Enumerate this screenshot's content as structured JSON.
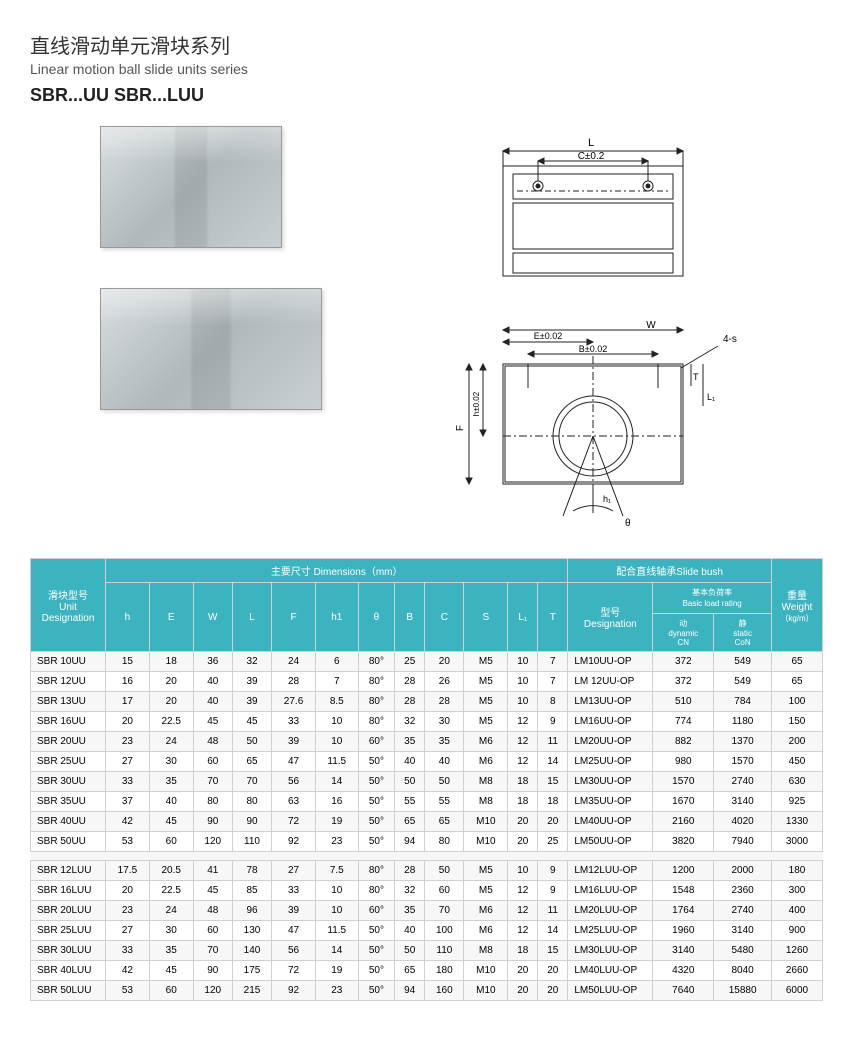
{
  "titles": {
    "cn": "直线滑动单元滑块系列",
    "en": "Linear motion ball slide units series",
    "models": "SBR...UU    SBR...LUU"
  },
  "diagram_labels": {
    "top_L": "L",
    "top_C": "C±0.2",
    "front_E": "E±0.02",
    "front_W": "W",
    "front_4s": "4-s",
    "front_B": "B±0.02",
    "front_F": "F",
    "front_h": "h±0.02",
    "front_T": "T",
    "front_L1": "L₁",
    "front_h1": "h₁",
    "front_theta": "θ"
  },
  "header": {
    "group1_cn": "滑块型号",
    "group1_en": "Unit",
    "group1_en2": "Designation",
    "group2_cn": "主要尺寸  Dimensions（mm）",
    "group3_cn": "配合直线轴承Slide bush",
    "group4_cn": "重量",
    "group4_en": "Weight",
    "group4_unit": "（kg/m）",
    "h": "h",
    "E": "E",
    "W": "W",
    "L": "L",
    "F": "F",
    "h1": "h1",
    "theta": "θ",
    "B": "B",
    "C": "C",
    "S": "S",
    "L1": "L₁",
    "T": "T",
    "des_cn": "型号",
    "des_en": "Designation",
    "loads_cn": "基本负荷率",
    "loads_en": "Basic load rating",
    "dyn_cn": "动",
    "dyn_en": "dynamic",
    "dyn_unit": "CN",
    "sta_cn": "静",
    "sta_en": "static",
    "sta_unit": "CoN"
  },
  "tableA": [
    {
      "d": "SBR 10UU",
      "h": "15",
      "E": "18",
      "W": "36",
      "L": "32",
      "F": "24",
      "h1": "6",
      "th": "80°",
      "B": "25",
      "C": "20",
      "S": "M5",
      "L1": "10",
      "T": "7",
      "des": "LM10UU-OP",
      "dyn": "372",
      "sta": "549",
      "wt": "65"
    },
    {
      "d": "SBR 12UU",
      "h": "16",
      "E": "20",
      "W": "40",
      "L": "39",
      "F": "28",
      "h1": "7",
      "th": "80°",
      "B": "28",
      "C": "26",
      "S": "M5",
      "L1": "10",
      "T": "7",
      "des": "LM 12UU-OP",
      "dyn": "372",
      "sta": "549",
      "wt": "65"
    },
    {
      "d": "SBR 13UU",
      "h": "17",
      "E": "20",
      "W": "40",
      "L": "39",
      "F": "27.6",
      "h1": "8.5",
      "th": "80°",
      "B": "28",
      "C": "28",
      "S": "M5",
      "L1": "10",
      "T": "8",
      "des": "LM13UU-OP",
      "dyn": "510",
      "sta": "784",
      "wt": "100"
    },
    {
      "d": "SBR 16UU",
      "h": "20",
      "E": "22.5",
      "W": "45",
      "L": "45",
      "F": "33",
      "h1": "10",
      "th": "80°",
      "B": "32",
      "C": "30",
      "S": "M5",
      "L1": "12",
      "T": "9",
      "des": "LM16UU-OP",
      "dyn": "774",
      "sta": "1180",
      "wt": "150"
    },
    {
      "d": "SBR 20UU",
      "h": "23",
      "E": "24",
      "W": "48",
      "L": "50",
      "F": "39",
      "h1": "10",
      "th": "60°",
      "B": "35",
      "C": "35",
      "S": "M6",
      "L1": "12",
      "T": "11",
      "des": "LM20UU-OP",
      "dyn": "882",
      "sta": "1370",
      "wt": "200"
    },
    {
      "d": "SBR 25UU",
      "h": "27",
      "E": "30",
      "W": "60",
      "L": "65",
      "F": "47",
      "h1": "11.5",
      "th": "50°",
      "B": "40",
      "C": "40",
      "S": "M6",
      "L1": "12",
      "T": "14",
      "des": "LM25UU-OP",
      "dyn": "980",
      "sta": "1570",
      "wt": "450"
    },
    {
      "d": "SBR 30UU",
      "h": "33",
      "E": "35",
      "W": "70",
      "L": "70",
      "F": "56",
      "h1": "14",
      "th": "50°",
      "B": "50",
      "C": "50",
      "S": "M8",
      "L1": "18",
      "T": "15",
      "des": "LM30UU-OP",
      "dyn": "1570",
      "sta": "2740",
      "wt": "630"
    },
    {
      "d": "SBR 35UU",
      "h": "37",
      "E": "40",
      "W": "80",
      "L": "80",
      "F": "63",
      "h1": "16",
      "th": "50°",
      "B": "55",
      "C": "55",
      "S": "M8",
      "L1": "18",
      "T": "18",
      "des": "LM35UU-OP",
      "dyn": "1670",
      "sta": "3140",
      "wt": "925"
    },
    {
      "d": "SBR 40UU",
      "h": "42",
      "E": "45",
      "W": "90",
      "L": "90",
      "F": "72",
      "h1": "19",
      "th": "50°",
      "B": "65",
      "C": "65",
      "S": "M10",
      "L1": "20",
      "T": "20",
      "des": "LM40UU-OP",
      "dyn": "2160",
      "sta": "4020",
      "wt": "1330"
    },
    {
      "d": "SBR 50UU",
      "h": "53",
      "E": "60",
      "W": "120",
      "L": "110",
      "F": "92",
      "h1": "23",
      "th": "50°",
      "B": "94",
      "C": "80",
      "S": "M10",
      "L1": "20",
      "T": "25",
      "des": "LM50UU-OP",
      "dyn": "3820",
      "sta": "7940",
      "wt": "3000"
    }
  ],
  "tableB": [
    {
      "d": "SBR 12LUU",
      "h": "17.5",
      "E": "20.5",
      "W": "41",
      "L": "78",
      "F": "27",
      "h1": "7.5",
      "th": "80°",
      "B": "28",
      "C": "50",
      "S": "M5",
      "L1": "10",
      "T": "9",
      "des": "LM12LUU-OP",
      "dyn": "1200",
      "sta": "2000",
      "wt": "180"
    },
    {
      "d": "SBR 16LUU",
      "h": "20",
      "E": "22.5",
      "W": "45",
      "L": "85",
      "F": "33",
      "h1": "10",
      "th": "80°",
      "B": "32",
      "C": "60",
      "S": "M5",
      "L1": "12",
      "T": "9",
      "des": "LM16LUU-OP",
      "dyn": "1548",
      "sta": "2360",
      "wt": "300"
    },
    {
      "d": "SBR 20LUU",
      "h": "23",
      "E": "24",
      "W": "48",
      "L": "96",
      "F": "39",
      "h1": "10",
      "th": "60°",
      "B": "35",
      "C": "70",
      "S": "M6",
      "L1": "12",
      "T": "11",
      "des": "LM20LUU-OP",
      "dyn": "1764",
      "sta": "2740",
      "wt": "400"
    },
    {
      "d": "SBR 25LUU",
      "h": "27",
      "E": "30",
      "W": "60",
      "L": "130",
      "F": "47",
      "h1": "11.5",
      "th": "50°",
      "B": "40",
      "C": "100",
      "S": "M6",
      "L1": "12",
      "T": "14",
      "des": "LM25LUU-OP",
      "dyn": "1960",
      "sta": "3140",
      "wt": "900"
    },
    {
      "d": "SBR 30LUU",
      "h": "33",
      "E": "35",
      "W": "70",
      "L": "140",
      "F": "56",
      "h1": "14",
      "th": "50°",
      "B": "50",
      "C": "110",
      "S": "M8",
      "L1": "18",
      "T": "15",
      "des": "LM30LUU-OP",
      "dyn": "3140",
      "sta": "5480",
      "wt": "1260"
    },
    {
      "d": "SBR 40LUU",
      "h": "42",
      "E": "45",
      "W": "90",
      "L": "175",
      "F": "72",
      "h1": "19",
      "th": "50°",
      "B": "65",
      "C": "180",
      "S": "M10",
      "L1": "20",
      "T": "20",
      "des": "LM40LUU-OP",
      "dyn": "4320",
      "sta": "8040",
      "wt": "2660"
    },
    {
      "d": "SBR 50LUU",
      "h": "53",
      "E": "60",
      "W": "120",
      "L": "215",
      "F": "92",
      "h1": "23",
      "th": "50°",
      "B": "94",
      "C": "160",
      "S": "M10",
      "L1": "20",
      "T": "20",
      "des": "LM50LUU-OP",
      "dyn": "7640",
      "sta": "15880",
      "wt": "6000"
    }
  ],
  "styling": {
    "header_bg": "#3bb4c0",
    "header_color": "#ffffff",
    "border_color": "#d0d0d0",
    "row_alt_bg": "#f7f7f7",
    "row_bg": "#ffffff",
    "font_size_pt": 10
  }
}
